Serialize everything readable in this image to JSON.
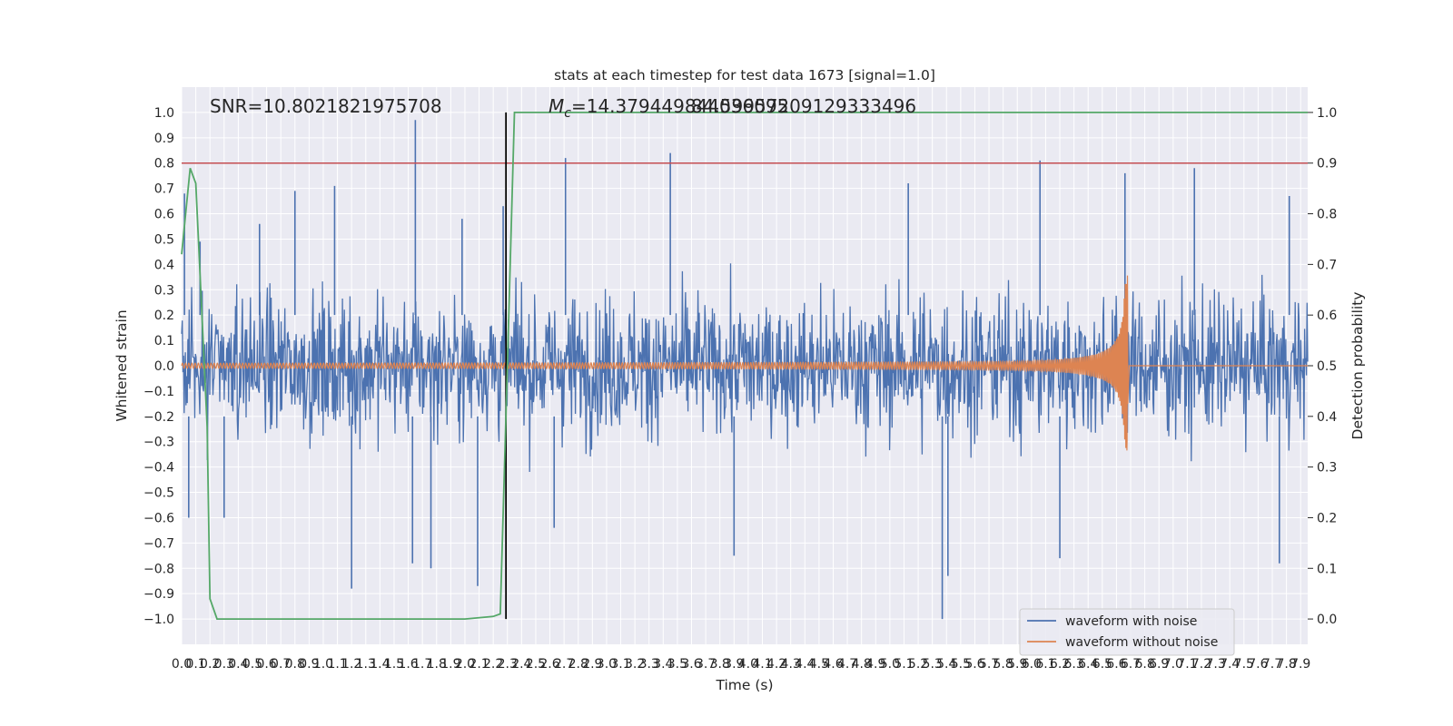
{
  "chart_data": {
    "type": "line",
    "title": "stats at each timestep for test data 1673 [signal=1.0]",
    "xlabel": "Time (s)",
    "ylabel": "Whitened strain",
    "ylabel_right": "Detection probability",
    "xlim": [
      0.0,
      7.95
    ],
    "ylim": [
      -1.1,
      1.1
    ],
    "ylim_right": [
      -0.05,
      1.05
    ],
    "x_ticks": [
      0.0,
      0.1,
      0.2,
      0.3,
      0.4,
      0.5,
      0.6,
      0.7,
      0.8,
      0.9,
      1.0,
      1.1,
      1.2,
      1.3,
      1.4,
      1.5,
      1.6,
      1.7,
      1.8,
      1.9,
      2.0,
      2.1,
      2.2,
      2.3,
      2.4,
      2.5,
      2.6,
      2.7,
      2.8,
      2.9,
      3.0,
      3.1,
      3.2,
      3.3,
      3.4,
      3.5,
      3.6,
      3.7,
      3.8,
      3.9,
      4.0,
      4.1,
      4.2,
      4.3,
      4.4,
      4.5,
      4.6,
      4.7,
      4.8,
      4.9,
      5.0,
      5.1,
      5.2,
      5.3,
      5.4,
      5.5,
      5.6,
      5.7,
      5.8,
      5.9,
      6.0,
      6.1,
      6.2,
      6.3,
      6.4,
      6.5,
      6.6,
      6.7,
      6.8,
      6.9,
      7.0,
      7.1,
      7.2,
      7.3,
      7.4,
      7.5,
      7.6,
      7.7,
      7.8,
      7.9
    ],
    "y_ticks": [
      -1.0,
      -0.9,
      -0.8,
      -0.7,
      -0.6,
      -0.5,
      -0.4,
      -0.3,
      -0.2,
      -0.1,
      0.0,
      0.1,
      0.2,
      0.3,
      0.4,
      0.5,
      0.6,
      0.7,
      0.8,
      0.9,
      1.0
    ],
    "y_ticks_right": [
      0.0,
      0.1,
      0.2,
      0.3,
      0.4,
      0.5,
      0.6,
      0.7,
      0.8,
      0.9,
      1.0
    ],
    "annotations": {
      "snr": "SNR=10.8021821975708",
      "mc_symbol": "M",
      "mc_subscript": "c",
      "mc_value_a": "=14.379449844036095",
      "mc_value_b": "84.59957209129333496"
    },
    "threshold_right": 0.9,
    "event_time": 2.29,
    "noisy_waveform": {
      "name": "waveform with noise",
      "color": "#4c72b0",
      "typical_range": [
        -0.4,
        0.4
      ],
      "peaks": [
        {
          "x": 0.02,
          "y": 0.68
        },
        {
          "x": 0.13,
          "y": 0.49
        },
        {
          "x": 0.55,
          "y": 0.56
        },
        {
          "x": 0.8,
          "y": 0.69
        },
        {
          "x": 1.08,
          "y": 0.71
        },
        {
          "x": 1.65,
          "y": 0.97
        },
        {
          "x": 1.98,
          "y": 0.58
        },
        {
          "x": 2.27,
          "y": 0.63
        },
        {
          "x": 2.71,
          "y": 0.82
        },
        {
          "x": 3.45,
          "y": 0.84
        },
        {
          "x": 5.13,
          "y": 0.72
        },
        {
          "x": 6.06,
          "y": 0.81
        },
        {
          "x": 6.66,
          "y": 0.76
        },
        {
          "x": 7.15,
          "y": 0.78
        },
        {
          "x": 7.82,
          "y": 0.67
        }
      ],
      "troughs": [
        {
          "x": 0.05,
          "y": -0.6
        },
        {
          "x": 0.3,
          "y": -0.6
        },
        {
          "x": 1.2,
          "y": -0.88
        },
        {
          "x": 1.63,
          "y": -0.78
        },
        {
          "x": 1.76,
          "y": -0.8
        },
        {
          "x": 2.09,
          "y": -0.87
        },
        {
          "x": 2.63,
          "y": -0.64
        },
        {
          "x": 3.9,
          "y": -0.75
        },
        {
          "x": 5.37,
          "y": -1.0
        },
        {
          "x": 5.41,
          "y": -0.83
        },
        {
          "x": 6.2,
          "y": -0.76
        },
        {
          "x": 7.75,
          "y": -0.78
        }
      ]
    },
    "clean_waveform": {
      "name": "waveform without noise",
      "color": "#dd8452",
      "base_amplitude": 0.01,
      "peak_amplitude": 0.37,
      "merger_time": 6.68
    },
    "detection_probability": {
      "color": "#55a868",
      "points": [
        [
          0.0,
          0.72
        ],
        [
          0.06,
          0.89
        ],
        [
          0.1,
          0.86
        ],
        [
          0.18,
          0.38
        ],
        [
          0.2,
          0.04
        ],
        [
          0.25,
          0.0
        ],
        [
          2.0,
          0.0
        ],
        [
          2.2,
          0.005
        ],
        [
          2.25,
          0.01
        ],
        [
          2.3,
          0.5
        ],
        [
          2.35,
          1.0
        ],
        [
          7.95,
          1.0
        ]
      ]
    },
    "legend": {
      "placement": "lower-right"
    },
    "grid": true,
    "colors": {
      "plot_background": "#eaeaf2",
      "grid": "#ffffff",
      "threshold": "#c44e52",
      "event_marker": "#000000"
    }
  }
}
